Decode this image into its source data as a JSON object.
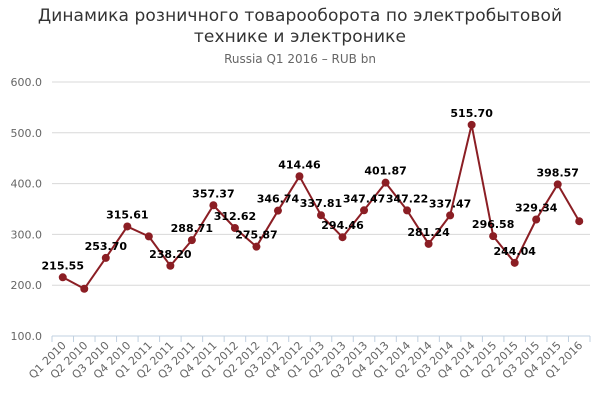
{
  "chart_data": {
    "type": "line",
    "title_lines": [
      "Динамика розничного товарооборота по электробытовой",
      "технике и электронике"
    ],
    "subtitle": "Russia Q1 2016 – RUB bn",
    "xlabel": "",
    "ylabel": "",
    "ylim": [
      100,
      600
    ],
    "y_ticks": [
      "100.0",
      "200.0",
      "300.0",
      "400.0",
      "500.0",
      "600.0"
    ],
    "grid": true,
    "legend": "none",
    "colors": {
      "line": "#8b1e24",
      "marker": "#8b1e24",
      "grid": "#d8d8d8",
      "axis": "#c0d0e0"
    },
    "categories": [
      "Q1 2010",
      "Q2 2010",
      "Q3 2010",
      "Q4 2010",
      "Q1 2011",
      "Q2 2011",
      "Q3 2011",
      "Q4 2011",
      "Q1 2012",
      "Q2 2012",
      "Q3 2012",
      "Q4 2012",
      "Q1 2013",
      "Q2 2013",
      "Q3 2013",
      "Q4 2013",
      "Q1 2014",
      "Q2 2014",
      "Q3 2014",
      "Q4 2014",
      "Q1 2015",
      "Q2 2015",
      "Q3 2015",
      "Q4 2015",
      "Q1 2016"
    ],
    "series": [
      {
        "values": [
          215.55,
          193,
          253.7,
          315.61,
          296,
          238.2,
          288.71,
          357.37,
          312.62,
          275.87,
          346.74,
          414.46,
          337.81,
          294.46,
          347.47,
          401.87,
          347.22,
          281.24,
          337.47,
          515.7,
          296.58,
          244.04,
          329.34,
          398.57,
          326
        ],
        "labels": [
          "215.55",
          "",
          "253.70",
          "315.61",
          "",
          "238.20",
          "288.71",
          "357.37",
          "312.62",
          "275.87",
          "346.74",
          "414.46",
          "337.81",
          "294.46",
          "347.47",
          "401.87",
          "347.22",
          "281.24",
          "337.47",
          "515.70",
          "296.58",
          "244.04",
          "329.34",
          "398.57",
          ""
        ]
      }
    ]
  }
}
